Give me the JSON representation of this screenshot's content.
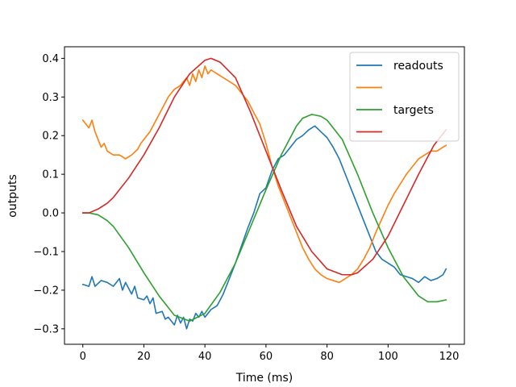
{
  "chart_data": {
    "type": "line",
    "xlabel": "Time (ms)",
    "ylabel": "outputs",
    "xlim": [
      -6,
      125
    ],
    "ylim": [
      -0.34,
      0.43
    ],
    "xticks": [
      0,
      20,
      40,
      60,
      80,
      100,
      120
    ],
    "yticks": [
      -0.3,
      -0.2,
      -0.1,
      0.0,
      0.1,
      0.2,
      0.3,
      0.4
    ],
    "xtick_labels": [
      "0",
      "20",
      "40",
      "60",
      "80",
      "100",
      "120"
    ],
    "ytick_labels": [
      "−0.3",
      "−0.2",
      "−0.1",
      "0.0",
      "0.1",
      "0.2",
      "0.3",
      "0.4"
    ],
    "grid": false,
    "legend_position": "top-right",
    "legend": [
      "readouts",
      "",
      "targets",
      ""
    ],
    "series": [
      {
        "name": "readouts",
        "color": "#1f77b4",
        "x": [
          0,
          2,
          3,
          4,
          6,
          8,
          10,
          12,
          13,
          14,
          16,
          17,
          18,
          20,
          21,
          22,
          23,
          24,
          26,
          27,
          28,
          30,
          31,
          32,
          33,
          34,
          35,
          36,
          37,
          38,
          39,
          40,
          42,
          44,
          46,
          48,
          50,
          52,
          54,
          56,
          58,
          60,
          62,
          64,
          66,
          68,
          70,
          72,
          74,
          76,
          78,
          80,
          82,
          84,
          86,
          88,
          90,
          92,
          94,
          96,
          98,
          100,
          102,
          104,
          106,
          108,
          110,
          112,
          114,
          116,
          118,
          119
        ],
        "values": [
          -0.185,
          -0.19,
          -0.165,
          -0.19,
          -0.175,
          -0.18,
          -0.19,
          -0.17,
          -0.2,
          -0.18,
          -0.21,
          -0.19,
          -0.22,
          -0.225,
          -0.215,
          -0.235,
          -0.22,
          -0.26,
          -0.255,
          -0.275,
          -0.27,
          -0.29,
          -0.265,
          -0.285,
          -0.27,
          -0.3,
          -0.275,
          -0.28,
          -0.26,
          -0.27,
          -0.255,
          -0.27,
          -0.25,
          -0.24,
          -0.21,
          -0.17,
          -0.13,
          -0.085,
          -0.04,
          0.0,
          0.05,
          0.065,
          0.11,
          0.14,
          0.15,
          0.17,
          0.19,
          0.2,
          0.215,
          0.225,
          0.21,
          0.195,
          0.17,
          0.14,
          0.1,
          0.06,
          0.02,
          -0.02,
          -0.06,
          -0.1,
          -0.12,
          -0.13,
          -0.14,
          -0.16,
          -0.165,
          -0.17,
          -0.18,
          -0.165,
          -0.175,
          -0.17,
          -0.16,
          -0.145
        ]
      },
      {
        "name": "",
        "color": "#ff7f0e",
        "x": [
          0,
          2,
          3,
          4,
          6,
          7,
          8,
          10,
          12,
          14,
          16,
          18,
          19,
          20,
          22,
          24,
          26,
          28,
          30,
          32,
          33,
          34,
          35,
          36,
          37,
          38,
          39,
          40,
          41,
          42,
          44,
          46,
          48,
          50,
          52,
          54,
          56,
          58,
          60,
          62,
          64,
          66,
          68,
          70,
          72,
          74,
          76,
          78,
          80,
          82,
          84,
          86,
          88,
          90,
          92,
          94,
          96,
          98,
          100,
          102,
          104,
          106,
          108,
          110,
          112,
          114,
          116,
          118,
          119
        ],
        "values": [
          0.24,
          0.22,
          0.24,
          0.21,
          0.17,
          0.18,
          0.16,
          0.15,
          0.15,
          0.14,
          0.15,
          0.165,
          0.18,
          0.19,
          0.21,
          0.24,
          0.27,
          0.3,
          0.32,
          0.33,
          0.34,
          0.35,
          0.33,
          0.36,
          0.34,
          0.37,
          0.35,
          0.38,
          0.36,
          0.37,
          0.36,
          0.35,
          0.34,
          0.33,
          0.31,
          0.29,
          0.26,
          0.23,
          0.18,
          0.12,
          0.07,
          0.03,
          -0.01,
          -0.05,
          -0.09,
          -0.12,
          -0.145,
          -0.16,
          -0.17,
          -0.175,
          -0.18,
          -0.17,
          -0.16,
          -0.145,
          -0.12,
          -0.09,
          -0.05,
          -0.015,
          0.02,
          0.05,
          0.075,
          0.1,
          0.12,
          0.14,
          0.15,
          0.16,
          0.16,
          0.17,
          0.175
        ]
      },
      {
        "name": "targets",
        "color": "#2ca02c",
        "x": [
          0,
          2,
          5,
          8,
          10,
          15,
          20,
          25,
          30,
          35,
          40,
          45,
          50,
          55,
          60,
          65,
          70,
          72,
          75,
          78,
          80,
          85,
          90,
          95,
          100,
          105,
          110,
          113,
          116,
          119
        ],
        "values": [
          0.0,
          0.0,
          -0.005,
          -0.02,
          -0.035,
          -0.09,
          -0.155,
          -0.215,
          -0.265,
          -0.28,
          -0.26,
          -0.205,
          -0.13,
          -0.035,
          0.06,
          0.15,
          0.225,
          0.245,
          0.255,
          0.25,
          0.24,
          0.19,
          0.1,
          0.0,
          -0.09,
          -0.165,
          -0.215,
          -0.23,
          -0.23,
          -0.225
        ]
      },
      {
        "name": "",
        "color": "#d62728",
        "x": [
          0,
          2,
          5,
          8,
          10,
          15,
          20,
          25,
          30,
          35,
          40,
          42,
          45,
          50,
          55,
          60,
          65,
          70,
          75,
          80,
          85,
          88,
          90,
          95,
          100,
          105,
          110,
          115,
          119
        ],
        "values": [
          0.0,
          0.0,
          0.01,
          0.025,
          0.04,
          0.09,
          0.15,
          0.22,
          0.3,
          0.36,
          0.395,
          0.4,
          0.39,
          0.35,
          0.26,
          0.16,
          0.06,
          -0.035,
          -0.1,
          -0.145,
          -0.16,
          -0.16,
          -0.155,
          -0.12,
          -0.06,
          0.02,
          0.1,
          0.175,
          0.215
        ]
      }
    ]
  }
}
